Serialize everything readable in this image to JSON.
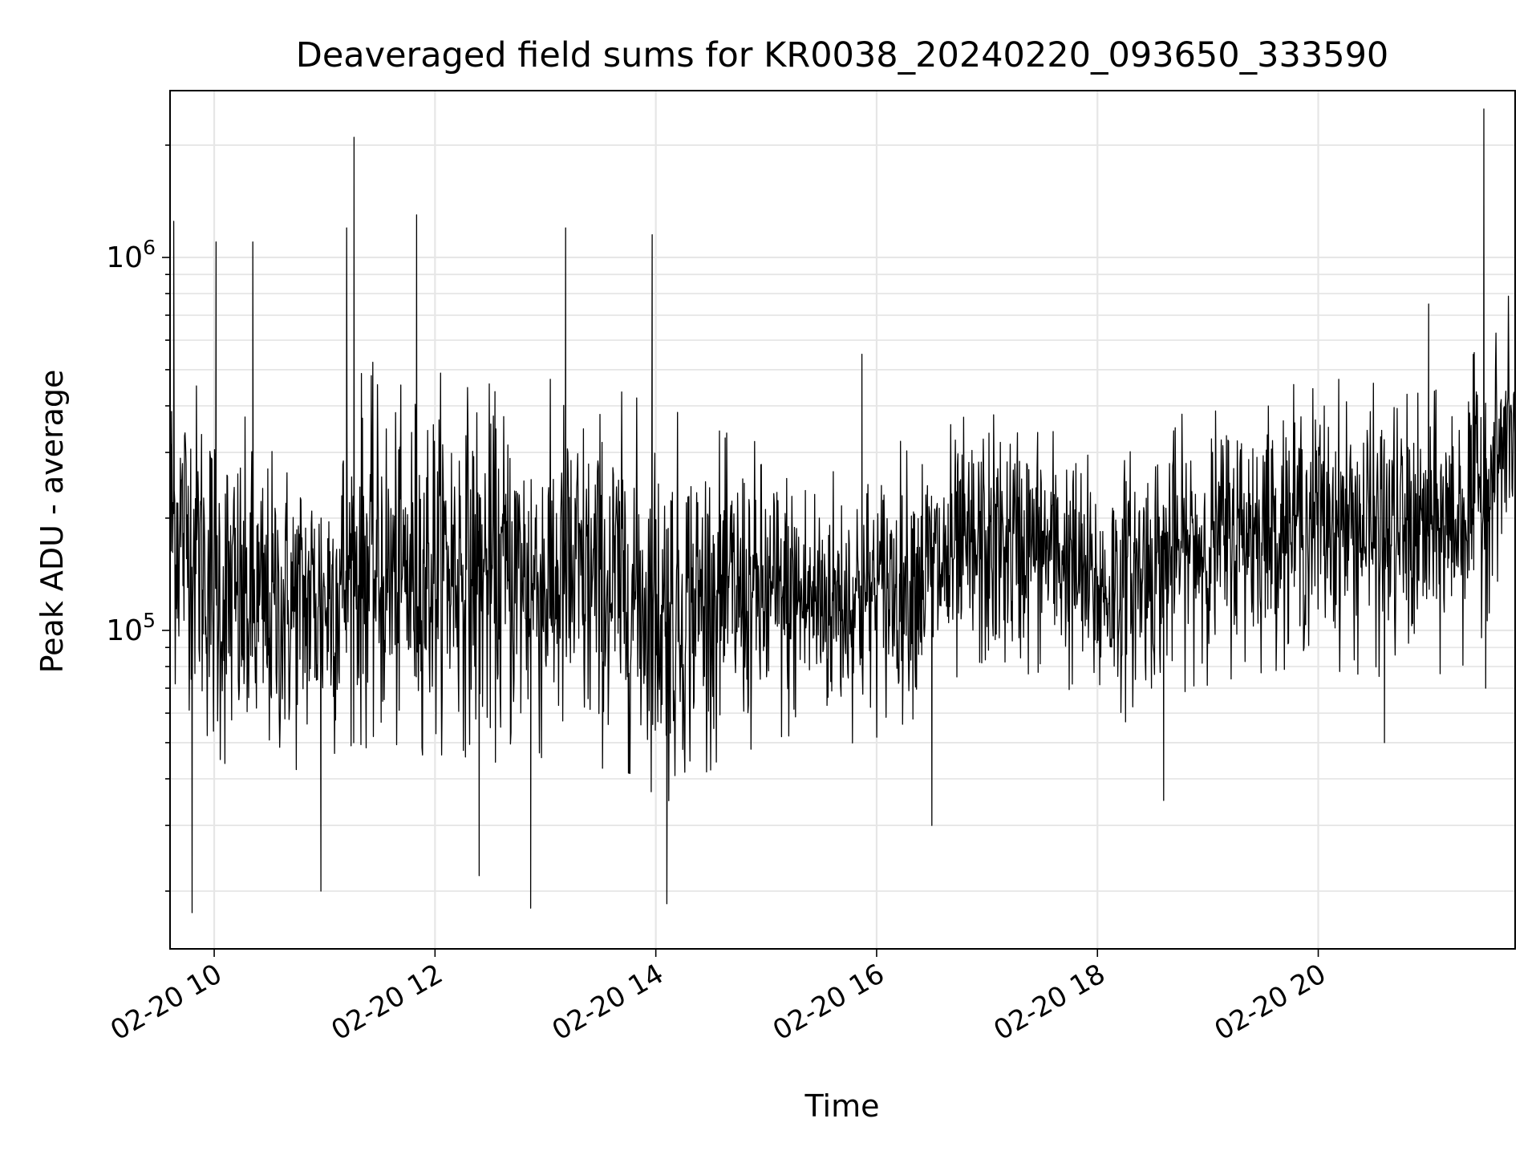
{
  "chart_data": {
    "type": "line",
    "title": "Deaveraged field sums for KR0038_20240220_093650_333590",
    "xlabel": "Time",
    "ylabel": "Peak ADU - average",
    "yscale": "log",
    "xlim": [
      "2024-02-20 09:36",
      "2024-02-20 21:47"
    ],
    "ylim": [
      14000,
      2800000
    ],
    "x_ticks": [
      {
        "label": "02-20 10",
        "time": "2024-02-20 10:00"
      },
      {
        "label": "02-20 12",
        "time": "2024-02-20 12:00"
      },
      {
        "label": "02-20 14",
        "time": "2024-02-20 14:00"
      },
      {
        "label": "02-20 16",
        "time": "2024-02-20 16:00"
      },
      {
        "label": "02-20 18",
        "time": "2024-02-20 18:00"
      },
      {
        "label": "02-20 20",
        "time": "2024-02-20 20:00"
      }
    ],
    "y_ticks": [
      {
        "base": "10",
        "exp": "5",
        "value": 100000
      },
      {
        "base": "10",
        "exp": "6",
        "value": 1000000
      }
    ],
    "grid": true,
    "line_color": "#000000",
    "series": [
      {
        "x": [
          "2024-02-20 09:36",
          "2024-02-20 09:50",
          "2024-02-20 10:00",
          "2024-02-20 10:10",
          "2024-02-20 10:22",
          "2024-02-20 10:40",
          "2024-02-20 11:00",
          "2024-02-20 11:12",
          "2024-02-20 11:20",
          "2024-02-20 11:40",
          "2024-02-20 11:52",
          "2024-02-20 12:10",
          "2024-02-20 12:30",
          "2024-02-20 12:50",
          "2024-02-20 13:10",
          "2024-02-20 13:30",
          "2024-02-20 13:50",
          "2024-02-20 14:00",
          "2024-02-20 14:10",
          "2024-02-20 14:20",
          "2024-02-20 14:40",
          "2024-02-20 15:00",
          "2024-02-20 15:20",
          "2024-02-20 15:40",
          "2024-02-20 16:00",
          "2024-02-20 16:20",
          "2024-02-20 16:40",
          "2024-02-20 17:00",
          "2024-02-20 17:20",
          "2024-02-20 17:40",
          "2024-02-20 18:00",
          "2024-02-20 18:20",
          "2024-02-20 18:40",
          "2024-02-20 19:00",
          "2024-02-20 19:20",
          "2024-02-20 19:40",
          "2024-02-20 20:00",
          "2024-02-20 20:20",
          "2024-02-20 20:40",
          "2024-02-20 21:00",
          "2024-02-20 21:20",
          "2024-02-20 21:30",
          "2024-02-20 21:47"
        ],
        "center": [
          200000,
          170000,
          130000,
          120000,
          110000,
          115000,
          120000,
          140000,
          150000,
          135000,
          145000,
          150000,
          140000,
          135000,
          135000,
          130000,
          125000,
          115000,
          110000,
          120000,
          125000,
          120000,
          120000,
          120000,
          125000,
          140000,
          150000,
          165000,
          170000,
          160000,
          125000,
          140000,
          160000,
          170000,
          185000,
          190000,
          200000,
          190000,
          185000,
          180000,
          210000,
          250000,
          350000
        ],
        "upper": [
          600000,
          500000,
          450000,
          350000,
          320000,
          300000,
          300000,
          450000,
          500000,
          400000,
          450000,
          450000,
          420000,
          420000,
          420000,
          400000,
          380000,
          320000,
          350000,
          320000,
          300000,
          280000,
          270000,
          260000,
          270000,
          300000,
          330000,
          360000,
          350000,
          320000,
          260000,
          300000,
          330000,
          360000,
          390000,
          400000,
          420000,
          420000,
          400000,
          380000,
          450000,
          550000,
          750000
        ],
        "lower": [
          80000,
          65000,
          50000,
          45000,
          45000,
          47000,
          48000,
          55000,
          55000,
          50000,
          52000,
          52000,
          50000,
          48000,
          48000,
          48000,
          46000,
          40000,
          38000,
          45000,
          50000,
          50000,
          52000,
          55000,
          58000,
          65000,
          70000,
          75000,
          78000,
          75000,
          60000,
          65000,
          75000,
          80000,
          85000,
          88000,
          90000,
          85000,
          80000,
          78000,
          90000,
          110000,
          230000
        ],
        "spikes": [
          {
            "x": "2024-02-20 09:38",
            "y": 1250000
          },
          {
            "x": "2024-02-20 09:48",
            "y": 17500
          },
          {
            "x": "2024-02-20 10:01",
            "y": 1100000
          },
          {
            "x": "2024-02-20 10:21",
            "y": 1100000
          },
          {
            "x": "2024-02-20 10:58",
            "y": 20000
          },
          {
            "x": "2024-02-20 11:12",
            "y": 1200000
          },
          {
            "x": "2024-02-20 11:16",
            "y": 2100000
          },
          {
            "x": "2024-02-20 11:50",
            "y": 1300000
          },
          {
            "x": "2024-02-20 12:24",
            "y": 22000
          },
          {
            "x": "2024-02-20 12:52",
            "y": 18000
          },
          {
            "x": "2024-02-20 13:11",
            "y": 1200000
          },
          {
            "x": "2024-02-20 13:58",
            "y": 1150000
          },
          {
            "x": "2024-02-20 14:06",
            "y": 18500
          },
          {
            "x": "2024-02-20 15:52",
            "y": 550000
          },
          {
            "x": "2024-02-20 16:30",
            "y": 30000
          },
          {
            "x": "2024-02-20 18:36",
            "y": 35000
          },
          {
            "x": "2024-02-20 20:36",
            "y": 50000
          },
          {
            "x": "2024-02-20 21:00",
            "y": 750000
          },
          {
            "x": "2024-02-20 21:30",
            "y": 2500000
          },
          {
            "x": "2024-02-20 21:31",
            "y": 70000
          }
        ]
      }
    ]
  }
}
